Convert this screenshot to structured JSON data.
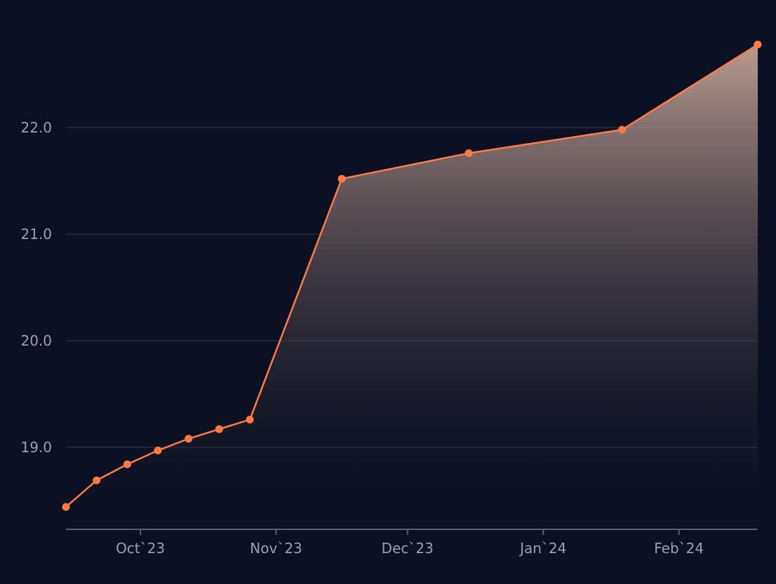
{
  "theme": {
    "background": "#0b1022",
    "line_color": "#ff7a45",
    "grid_color": "#262b3d",
    "axis_color": "#5b6073",
    "tick_text_color": "#9aa0b3",
    "area_gradient_top": "#d8b4a4",
    "area_gradient_bottom": "#0b1022"
  },
  "chart_data": {
    "type": "area",
    "title": "",
    "xlabel": "",
    "ylabel": "",
    "ylim": [
      18.23,
      23.0
    ],
    "xlim": [
      "2023-09-14",
      "2024-02-19"
    ],
    "grid": "horizontal",
    "legend": "none",
    "y_ticks": [
      {
        "value": 19.0,
        "label": "19.0"
      },
      {
        "value": 20.0,
        "label": "20.0"
      },
      {
        "value": 21.0,
        "label": "21.0"
      },
      {
        "value": 22.0,
        "label": "22.0"
      }
    ],
    "x_ticks": [
      {
        "date": "2023-10-01",
        "label": "Oct`23"
      },
      {
        "date": "2023-11-01",
        "label": "Nov`23"
      },
      {
        "date": "2023-12-01",
        "label": "Dec`23"
      },
      {
        "date": "2024-01-01",
        "label": "Jan`24"
      },
      {
        "date": "2024-02-01",
        "label": "Feb`24"
      }
    ],
    "series": [
      {
        "points": [
          {
            "x": "2023-09-14",
            "y": 18.44
          },
          {
            "x": "2023-09-21",
            "y": 18.69
          },
          {
            "x": "2023-09-28",
            "y": 18.84
          },
          {
            "x": "2023-10-05",
            "y": 18.97
          },
          {
            "x": "2023-10-12",
            "y": 19.08
          },
          {
            "x": "2023-10-19",
            "y": 19.17
          },
          {
            "x": "2023-10-26",
            "y": 19.26
          },
          {
            "x": "2023-11-16",
            "y": 21.52
          },
          {
            "x": "2023-12-15",
            "y": 21.76
          },
          {
            "x": "2024-01-19",
            "y": 21.98
          },
          {
            "x": "2024-02-19",
            "y": 22.78
          }
        ]
      }
    ]
  }
}
